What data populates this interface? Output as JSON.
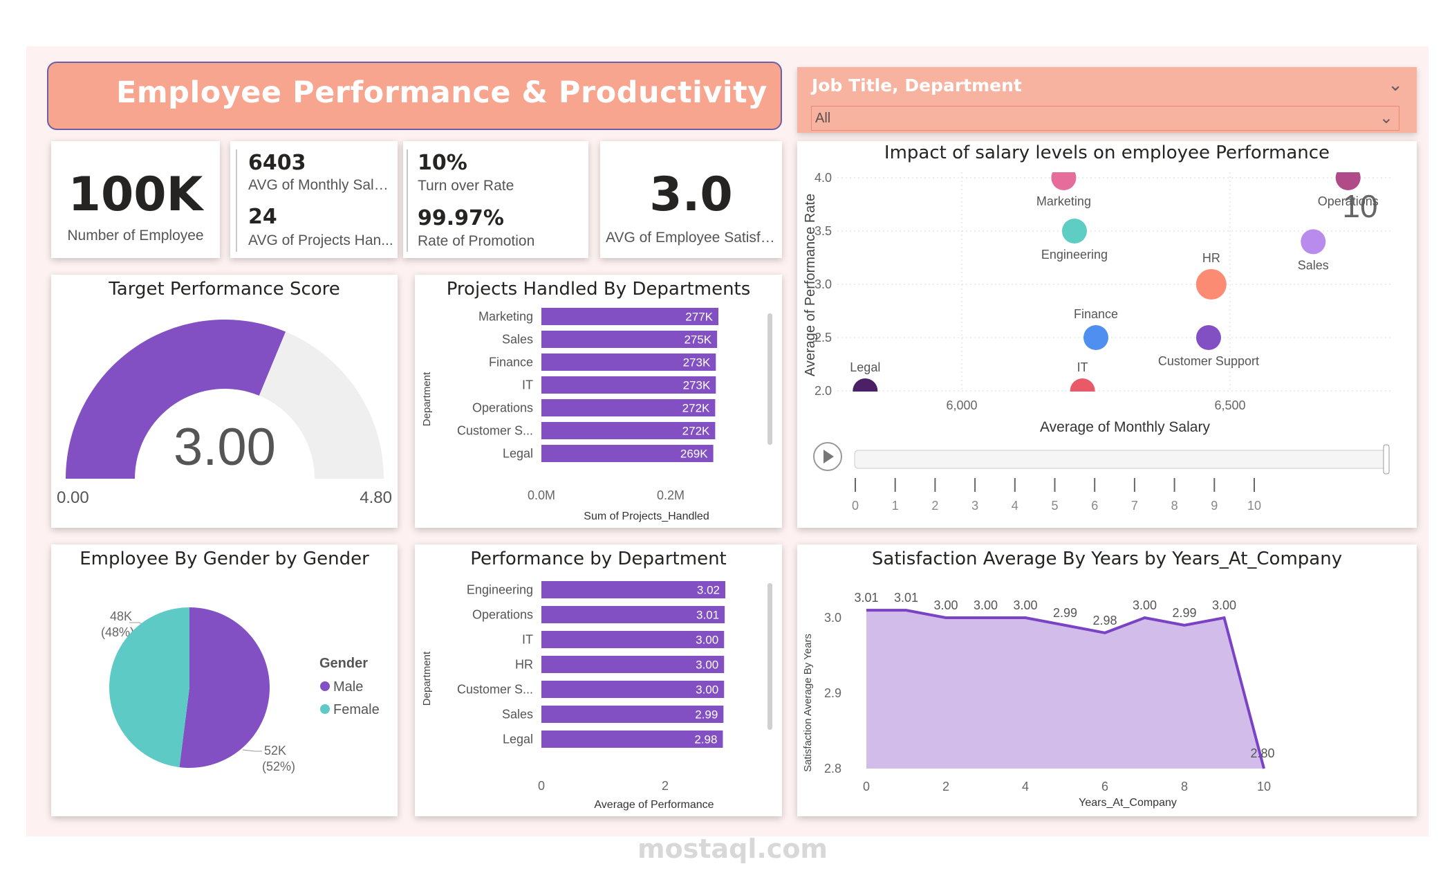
{
  "header": {
    "title": "Employee Performance & Productivity"
  },
  "slicer": {
    "label": "Job Title, Department",
    "value": "All"
  },
  "kpis": {
    "employees": {
      "value": "100K",
      "label": "Number of Employee"
    },
    "salary": {
      "value": "6403",
      "label": "AVG of Monthly Salary"
    },
    "projects": {
      "value": "24",
      "label": "AVG of Projects Han..."
    },
    "turnover": {
      "value": "10%",
      "label": "Turn over Rate"
    },
    "promotion": {
      "value": "99.97%",
      "label": "Rate of Promotion"
    },
    "satisfaction": {
      "value": "3.0",
      "label": "AVG of Employee Satisfa..."
    }
  },
  "gauge": {
    "title": "Target Performance Score",
    "value_label": "3.00",
    "min_label": "0.00",
    "max_label": "4.80",
    "value": 3.0,
    "min": 0,
    "max": 4.8,
    "fill_color": "#8350c3",
    "track_color": "#efefef"
  },
  "projects_chart": {
    "title": "Projects Handled By Departments",
    "ylabel": "Department",
    "xlabel": "Sum of Projects_Handled",
    "ticks": [
      "0.0M",
      "0.2M"
    ],
    "rows": [
      {
        "dept": "Marketing",
        "label": "277K",
        "value": 277
      },
      {
        "dept": "Sales",
        "label": "275K",
        "value": 275
      },
      {
        "dept": "Finance",
        "label": "273K",
        "value": 273
      },
      {
        "dept": "IT",
        "label": "273K",
        "value": 273
      },
      {
        "dept": "Operations",
        "label": "272K",
        "value": 272
      },
      {
        "dept": "Customer S...",
        "label": "272K",
        "value": 272
      },
      {
        "dept": "Legal",
        "label": "269K",
        "value": 269
      }
    ]
  },
  "scatter": {
    "title": "Impact of salary levels on employee Performance",
    "ylabel": "Average of Performance Rate",
    "xlabel": "Average of Monthly Salary",
    "yticks": [
      "4.0",
      "3.5",
      "3.0",
      "2.5",
      "2.0"
    ],
    "xticks": [
      "6,000",
      "6,500"
    ],
    "frame_label": "10",
    "points": [
      {
        "name": "Marketing",
        "x": 6190,
        "y": 4.0,
        "color": "#e66c9c"
      },
      {
        "name": "Operations",
        "x": 6720,
        "y": 4.0,
        "color": "#b04a88"
      },
      {
        "name": "Engineering",
        "x": 6210,
        "y": 3.5,
        "color": "#5ecdc4"
      },
      {
        "name": "Sales",
        "x": 6655,
        "y": 3.4,
        "color": "#b98bec"
      },
      {
        "name": "HR",
        "x": 6465,
        "y": 3.0,
        "color": "#fb8c73"
      },
      {
        "name": "Finance",
        "x": 6250,
        "y": 2.5,
        "color": "#4f8ff0"
      },
      {
        "name": "Customer Support",
        "x": 6460,
        "y": 2.5,
        "color": "#8350c3"
      },
      {
        "name": "Legal",
        "x": 5820,
        "y": 2.0,
        "color": "#4b2066"
      },
      {
        "name": "IT",
        "x": 6225,
        "y": 2.0,
        "color": "#e85a68"
      }
    ],
    "play_ticks": [
      "0",
      "1",
      "2",
      "3",
      "4",
      "5",
      "6",
      "7",
      "8",
      "9",
      "10"
    ]
  },
  "gender": {
    "title": "Employee By Gender by Gender",
    "legend_title": "Gender",
    "slices": [
      {
        "name": "Male",
        "value": 52,
        "label": "52K",
        "pct": "(52%)",
        "color": "#8350c3"
      },
      {
        "name": "Female",
        "value": 48,
        "label": "48K",
        "pct": "(48%)",
        "color": "#5ecac6"
      }
    ]
  },
  "performance_chart": {
    "title": "Performance by Department",
    "ylabel": "Department",
    "xlabel": "Average of Performance",
    "ticks": [
      "0",
      "2"
    ],
    "rows": [
      {
        "dept": "Engineering",
        "label": "3.02",
        "value": 3.02
      },
      {
        "dept": "Operations",
        "label": "3.01",
        "value": 3.01
      },
      {
        "dept": "IT",
        "label": "3.00",
        "value": 3.0
      },
      {
        "dept": "HR",
        "label": "3.00",
        "value": 3.0
      },
      {
        "dept": "Customer S...",
        "label": "3.00",
        "value": 3.0
      },
      {
        "dept": "Sales",
        "label": "2.99",
        "value": 2.99
      },
      {
        "dept": "Legal",
        "label": "2.98",
        "value": 2.98
      }
    ]
  },
  "chart_data": {
    "type": "area",
    "title": "Satisfaction Average By Years by Years_At_Company",
    "xlabel": "Years_At_Company",
    "ylabel": "Satisfaction Average By Years",
    "x": [
      0,
      1,
      2,
      3,
      4,
      5,
      6,
      7,
      8,
      9,
      10
    ],
    "values": [
      3.01,
      3.01,
      3.0,
      3.0,
      3.0,
      2.99,
      2.98,
      3.0,
      2.99,
      3.0,
      2.8
    ],
    "labels": [
      "3.01",
      "3.01",
      "3.00",
      "3.00",
      "3.00",
      "2.99",
      "2.98",
      "3.00",
      "2.99",
      "3.00",
      "2.80"
    ],
    "xticks": [
      "0",
      "2",
      "4",
      "6",
      "8",
      "10"
    ],
    "yticks": [
      "3.0",
      "2.9",
      "2.8"
    ],
    "ylim": [
      2.8,
      3.02
    ],
    "line_color": "#7a42c4",
    "fill_color": "#cdb6e8"
  },
  "watermark": "mostaql.com"
}
